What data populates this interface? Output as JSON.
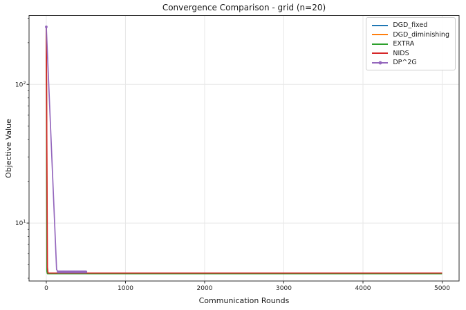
{
  "figure": {
    "background": "#ffffff",
    "grid_color": "#e7e7e7",
    "spine_color": "#2b2b2b",
    "text_color": "#1a1a1a"
  },
  "chart_data": {
    "type": "line",
    "title": "Convergence Comparison - grid (n=20)",
    "xlabel": "Communication Rounds",
    "ylabel": "Objective Value",
    "x_scale": "linear",
    "y_scale": "log",
    "xlim": [
      -218,
      5214
    ],
    "ylim": [
      3.82,
      314
    ],
    "x_ticks": [
      {
        "value": 0,
        "label": "0"
      },
      {
        "value": 1000,
        "label": "1000"
      },
      {
        "value": 2000,
        "label": "2000"
      },
      {
        "value": 3000,
        "label": "3000"
      },
      {
        "value": 4000,
        "label": "4000"
      },
      {
        "value": 5000,
        "label": "5000"
      }
    ],
    "y_ticks_major": [
      {
        "value": 10,
        "base": "10",
        "exp": "1"
      },
      {
        "value": 100,
        "base": "10",
        "exp": "2"
      }
    ],
    "y_ticks_minor": [
      4,
      5,
      6,
      7,
      8,
      9,
      20,
      30,
      40,
      50,
      60,
      70,
      80,
      90,
      200,
      300
    ],
    "grid": "major",
    "legend_position": "upper-right",
    "series": [
      {
        "name": "DGD_fixed",
        "color": "#1f77b4",
        "marker": "none",
        "points": [
          [
            0,
            260
          ],
          [
            10,
            4.6
          ],
          [
            18,
            4.33
          ],
          [
            5000,
            4.33
          ]
        ]
      },
      {
        "name": "DGD_diminishing",
        "color": "#ff7f0e",
        "marker": "none",
        "points": [
          [
            0,
            260
          ],
          [
            12,
            4.7
          ],
          [
            20,
            4.34
          ],
          [
            5000,
            4.34
          ]
        ]
      },
      {
        "name": "EXTRA",
        "color": "#2ca02c",
        "marker": "none",
        "points": [
          [
            0,
            260
          ],
          [
            7,
            4.5
          ],
          [
            14,
            4.31
          ],
          [
            5000,
            4.31
          ]
        ]
      },
      {
        "name": "NIDS",
        "color": "#d62728",
        "marker": "none",
        "points": [
          [
            0,
            260
          ],
          [
            14,
            4.8
          ],
          [
            22,
            4.36
          ],
          [
            5000,
            4.36
          ]
        ]
      },
      {
        "name": "DP^2G",
        "color": "#9467bd",
        "marker": "circle",
        "points": [
          [
            0,
            260
          ],
          [
            130,
            4.62
          ],
          [
            150,
            4.45
          ],
          [
            500,
            4.45
          ]
        ],
        "marker_rounds": [
          0,
          150,
          160,
          170,
          180,
          190,
          200,
          210,
          220,
          230,
          240,
          250,
          260,
          270,
          280,
          290,
          300,
          310,
          320,
          330,
          340,
          350,
          360,
          370,
          380,
          390,
          400,
          410,
          420,
          430,
          440,
          450,
          460,
          470,
          480,
          490,
          500
        ]
      }
    ]
  }
}
